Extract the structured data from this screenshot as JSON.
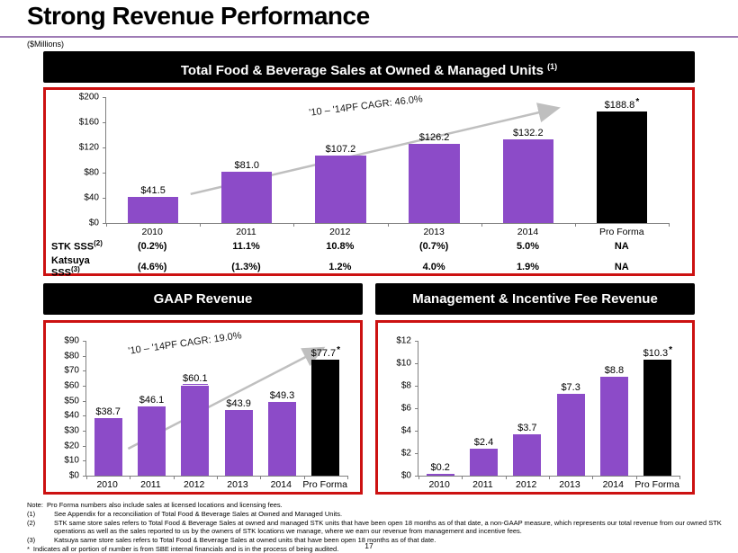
{
  "slide": {
    "title": "Strong Revenue Performance",
    "units_label": "($Millions)",
    "page_number": "17"
  },
  "colors": {
    "bar_purple": "#8C4BC8",
    "bar_black": "#000000",
    "panel_border_red": "#CC1111",
    "title_rule_purple": "#9E7BB5",
    "arrow_gray": "#BFBFBF"
  },
  "chart_data": [
    {
      "type": "bar",
      "title": "Total Food & Beverage Sales at Owned & Managed Units",
      "title_sup": "(1)",
      "cagr_label": "'10 – '14PF CAGR: 46.0%",
      "categories": [
        "2010",
        "2011",
        "2012",
        "2013",
        "2014",
        "Pro Forma"
      ],
      "values": [
        41.5,
        81.0,
        107.2,
        126.2,
        132.2,
        188.8
      ],
      "labels": [
        "$41.5",
        "$81.0",
        "$107.2",
        "$126.2",
        "$132.2",
        "$188.8"
      ],
      "bar_colors": [
        "#8C4BC8",
        "#8C4BC8",
        "#8C4BC8",
        "#8C4BC8",
        "#8C4BC8",
        "#000000"
      ],
      "starred_index": 5,
      "underlined_index": null,
      "xlabel": "",
      "ylabel": "",
      "units": "$Millions",
      "ylim": [
        0,
        200
      ],
      "yticks": [
        "$0",
        "$40",
        "$80",
        "$120",
        "$160",
        "$200"
      ],
      "grid": false,
      "legend": false
    },
    {
      "type": "bar",
      "title": "GAAP Revenue",
      "title_sup": "",
      "cagr_label": "'10 – '14PF CAGR: 19.0%",
      "categories": [
        "2010",
        "2011",
        "2012",
        "2013",
        "2014",
        "Pro Forma"
      ],
      "values": [
        38.7,
        46.1,
        60.1,
        43.9,
        49.3,
        77.7
      ],
      "labels": [
        "$38.7",
        "$46.1",
        "$60.1",
        "$43.9",
        "$49.3",
        "$77.7"
      ],
      "bar_colors": [
        "#8C4BC8",
        "#8C4BC8",
        "#8C4BC8",
        "#8C4BC8",
        "#8C4BC8",
        "#000000"
      ],
      "starred_index": 5,
      "underlined_index": 2,
      "xlabel": "",
      "ylabel": "",
      "units": "$Millions",
      "ylim": [
        0,
        90
      ],
      "yticks": [
        "$0",
        "$10",
        "$20",
        "$30",
        "$40",
        "$50",
        "$60",
        "$70",
        "$80",
        "$90"
      ],
      "grid": false,
      "legend": false
    },
    {
      "type": "bar",
      "title": "Management & Incentive Fee Revenue",
      "title_sup": "",
      "cagr_label": null,
      "categories": [
        "2010",
        "2011",
        "2012",
        "2013",
        "2014",
        "Pro Forma"
      ],
      "values": [
        0.2,
        2.4,
        3.7,
        7.3,
        8.8,
        10.3
      ],
      "labels": [
        "$0.2",
        "$2.4",
        "$3.7",
        "$7.3",
        "$8.8",
        "$10.3"
      ],
      "bar_colors": [
        "#8C4BC8",
        "#8C4BC8",
        "#8C4BC8",
        "#8C4BC8",
        "#8C4BC8",
        "#000000"
      ],
      "starred_index": 5,
      "underlined_index": null,
      "xlabel": "",
      "ylabel": "",
      "units": "$Millions",
      "ylim": [
        0,
        12
      ],
      "yticks": [
        "$0",
        "$2",
        "$4",
        "$6",
        "$8",
        "$10",
        "$12"
      ],
      "grid": false,
      "legend": false
    }
  ],
  "sss_table": {
    "rows": [
      {
        "label": "STK SSS",
        "sup": "(2)",
        "values": [
          "(0.2%)",
          "11.1%",
          "10.8%",
          "(0.7%)",
          "5.0%",
          "NA"
        ]
      },
      {
        "label": "Katsuya SSS",
        "sup": "(3)",
        "values": [
          "(4.6%)",
          "(1.3%)",
          "1.2%",
          "4.0%",
          "1.9%",
          "NA"
        ]
      }
    ]
  },
  "footnotes": [
    {
      "marker": "Note:",
      "text": "Pro Forma numbers also include sales at licensed locations and licensing fees."
    },
    {
      "marker": "(1)",
      "text": "See Appendix for a reconciliation of Total Food & Beverage Sales at Owned and Managed Units."
    },
    {
      "marker": "(2)",
      "text": "STK same store sales refers to Total Food & Beverage Sales at owned and managed STK units that have been open 18 months as of that date, a non-GAAP measure, which represents our total revenue from our owned STK operations as well as the sales reported to us by the owners of STK locations we manage, where we earn our revenue from management and incentive fees."
    },
    {
      "marker": "(3)",
      "text": "Katsuya same store sales refers to Total Food & Beverage Sales at owned units that have been open 18 months as of that date."
    },
    {
      "marker": "*",
      "text": "Indicates all or portion of number is from SBE internal financials and is in the process of being audited."
    }
  ]
}
